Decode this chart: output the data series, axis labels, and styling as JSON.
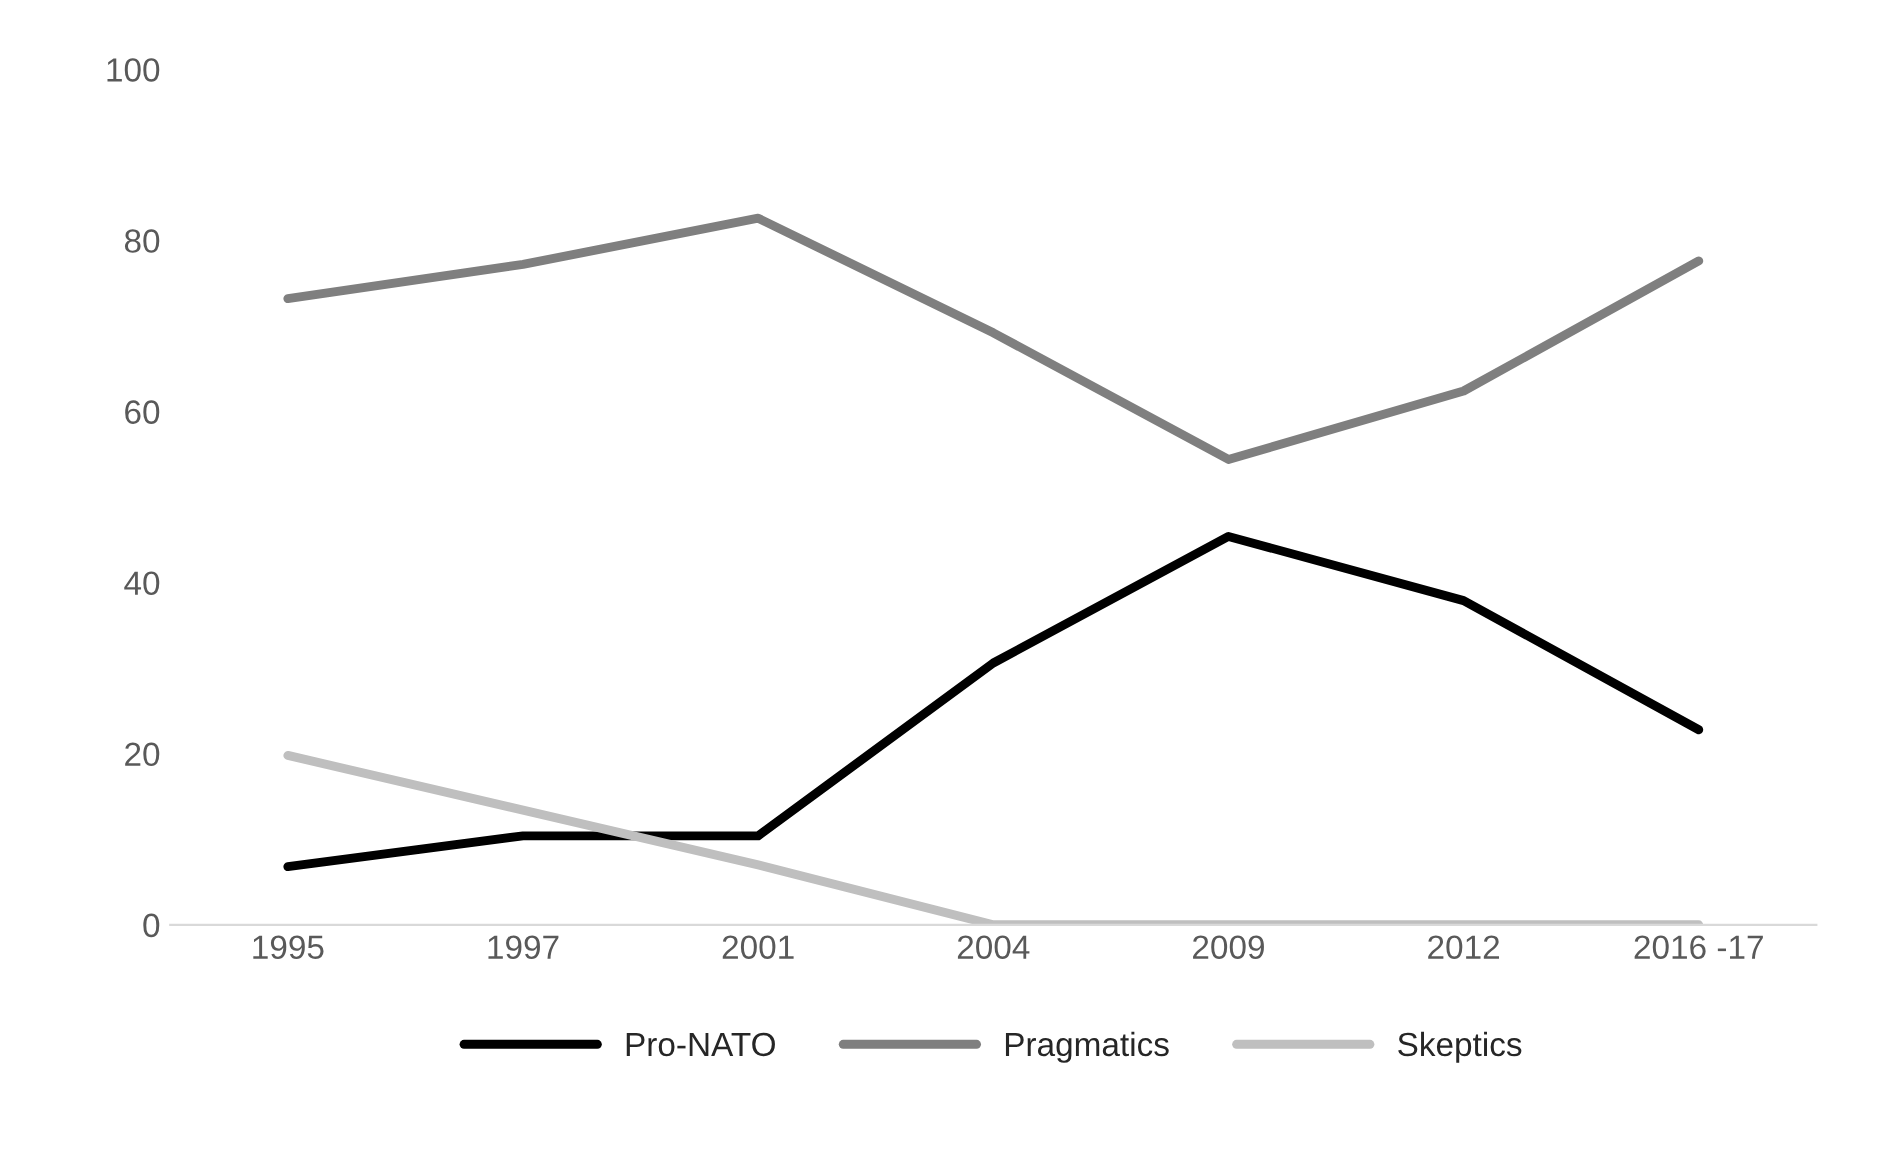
{
  "chart_data": {
    "type": "line",
    "categories": [
      "1995",
      "1997",
      "2001",
      "2004",
      "2009",
      "2012",
      "2016 -17"
    ],
    "ylim": [
      0,
      100
    ],
    "yticks": [
      0,
      20,
      40,
      60,
      80,
      100
    ],
    "grid": false,
    "legend": "bottom",
    "marker": "none",
    "line_style": "solid",
    "series": [
      {
        "name": "Pro-NATO",
        "color": "#000000",
        "values": [
          6.8,
          10.4,
          10.4,
          30.6,
          45.4,
          37.9,
          22.8
        ]
      },
      {
        "name": "Pragmatics",
        "color": "#7f7f7f",
        "values": [
          73.2,
          77.2,
          82.6,
          69.2,
          54.4,
          62.4,
          77.6
        ]
      },
      {
        "name": "Skeptics",
        "color": "#bfbfbf",
        "values": [
          19.8,
          13.4,
          7.0,
          0,
          0,
          0,
          0
        ]
      }
    ]
  }
}
